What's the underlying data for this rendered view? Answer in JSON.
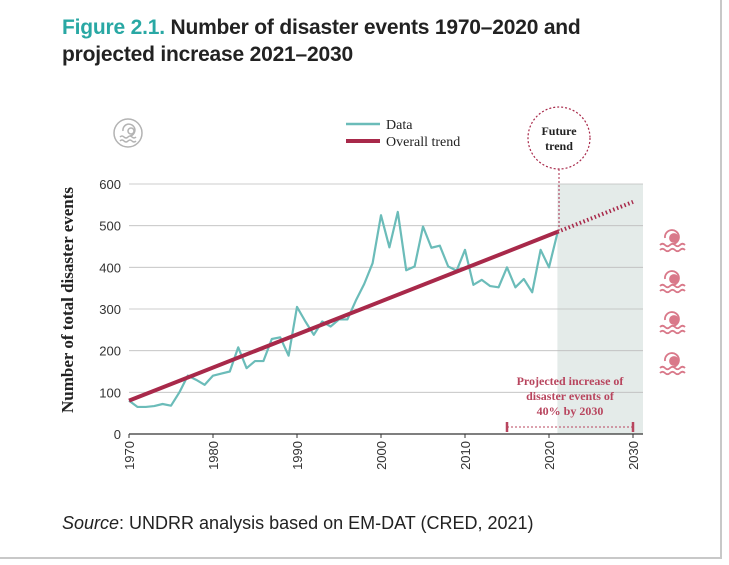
{
  "figure": {
    "number": "Figure 2.1.",
    "title": "Number of disaster events 1970–2020 and projected increase 2021–2030"
  },
  "source": {
    "label": "Source",
    "text": ": UNDRR analysis based on EM-DAT (CRED, 2021)"
  },
  "colors": {
    "data_line": "#6bbcb9",
    "trend_line": "#a8294a",
    "future_band": "#e4ebe9",
    "annotation": "#b8455e",
    "icon": "#d9798a",
    "icon_gray": "#b3b3b3"
  },
  "icons": {
    "legend_icon": "hazard-icon",
    "side_icons": [
      "hazard-icon",
      "hazard-icon",
      "hazard-icon",
      "hazard-icon"
    ]
  },
  "future_label": [
    "Future",
    "trend"
  ],
  "projection_label": [
    "Projected increase of",
    "disaster events of",
    "40% by 2030"
  ],
  "chart_data": {
    "type": "line",
    "ylabel": "Number of total disaster events",
    "xlabel": "",
    "xlim": [
      1970,
      2030
    ],
    "ylim": [
      0,
      600
    ],
    "xticks": [
      "1970",
      "1980",
      "1990",
      "2000",
      "2010",
      "2020",
      "2030"
    ],
    "yticks": [
      "0",
      "100",
      "200",
      "300",
      "400",
      "500",
      "600"
    ],
    "legend_position": "top-center",
    "legend": [
      "Data",
      "Overall trend"
    ],
    "future_region": [
      2021,
      2030
    ],
    "series": [
      {
        "name": "Data",
        "x": [
          1970,
          1971,
          1972,
          1973,
          1974,
          1975,
          1976,
          1977,
          1978,
          1979,
          1980,
          1981,
          1982,
          1983,
          1984,
          1985,
          1986,
          1987,
          1988,
          1989,
          1990,
          1991,
          1992,
          1993,
          1994,
          1995,
          1996,
          1997,
          1998,
          1999,
          2000,
          2001,
          2002,
          2003,
          2004,
          2005,
          2006,
          2007,
          2008,
          2009,
          2010,
          2011,
          2012,
          2013,
          2014,
          2015,
          2016,
          2017,
          2018,
          2019,
          2020,
          2021
        ],
        "y": [
          80,
          65,
          65,
          67,
          72,
          68,
          100,
          140,
          130,
          118,
          140,
          145,
          150,
          208,
          158,
          175,
          175,
          228,
          232,
          188,
          305,
          270,
          238,
          270,
          258,
          275,
          275,
          320,
          360,
          410,
          525,
          448,
          533,
          393,
          402,
          498,
          447,
          452,
          402,
          392,
          442,
          358,
          370,
          355,
          352,
          400,
          352,
          372,
          340,
          442,
          400,
          482
        ]
      },
      {
        "name": "Overall trend",
        "x": [
          1970,
          2021
        ],
        "y": [
          80,
          485
        ],
        "projection": {
          "x": [
            2021,
            2030
          ],
          "y": [
            485,
            557
          ]
        }
      }
    ]
  }
}
